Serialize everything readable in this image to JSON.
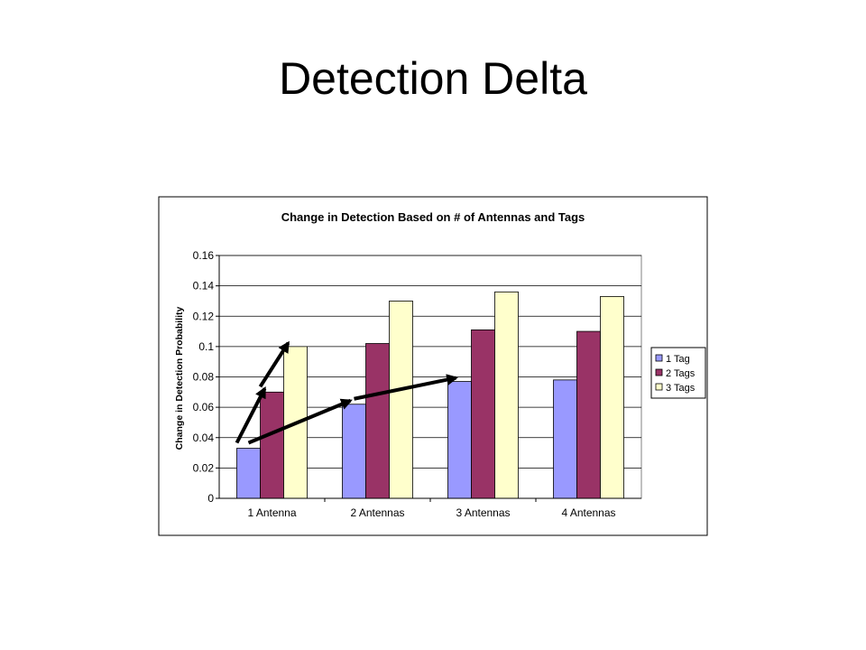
{
  "slide": {
    "title": "Detection Delta"
  },
  "chart_data": {
    "type": "bar",
    "title": "Change in Detection Based on # of Antennas and Tags",
    "xlabel": "",
    "ylabel": "Change in Detection Probability",
    "categories": [
      "1 Antenna",
      "2 Antennas",
      "3 Antennas",
      "4 Antennas"
    ],
    "series": [
      {
        "name": "1 Tag",
        "values": [
          0.033,
          0.062,
          0.077,
          0.078
        ],
        "color": "#9999ff"
      },
      {
        "name": "2 Tags",
        "values": [
          0.07,
          0.102,
          0.111,
          0.11
        ],
        "color": "#993366"
      },
      {
        "name": "3 Tags",
        "values": [
          0.1,
          0.13,
          0.136,
          0.133
        ],
        "color": "#ffffcc"
      }
    ],
    "ylim": [
      0,
      0.16
    ],
    "yticks": [
      "0",
      "0.02",
      "0.04",
      "0.06",
      "0.08",
      "0.1",
      "0.12",
      "0.14",
      "0.16"
    ],
    "grid": true,
    "legend_position": "right",
    "plot_background": "#ffffff",
    "annotations": [
      {
        "type": "arrow",
        "from": {
          "category": "1 Antenna",
          "series": "1 Tag"
        },
        "to": {
          "category": "1 Antenna",
          "series": "2 Tags"
        }
      },
      {
        "type": "arrow",
        "from": {
          "category": "1 Antenna",
          "series": "2 Tags"
        },
        "to": {
          "category": "1 Antenna",
          "series": "3 Tags"
        }
      },
      {
        "type": "arrow",
        "from": {
          "category": "1 Antenna",
          "series": "1 Tag"
        },
        "to": {
          "category": "2 Antennas",
          "series": "1 Tag"
        }
      },
      {
        "type": "arrow",
        "from": {
          "category": "2 Antennas",
          "series": "1 Tag"
        },
        "to": {
          "category": "3 Antennas",
          "series": "1 Tag"
        }
      }
    ]
  }
}
